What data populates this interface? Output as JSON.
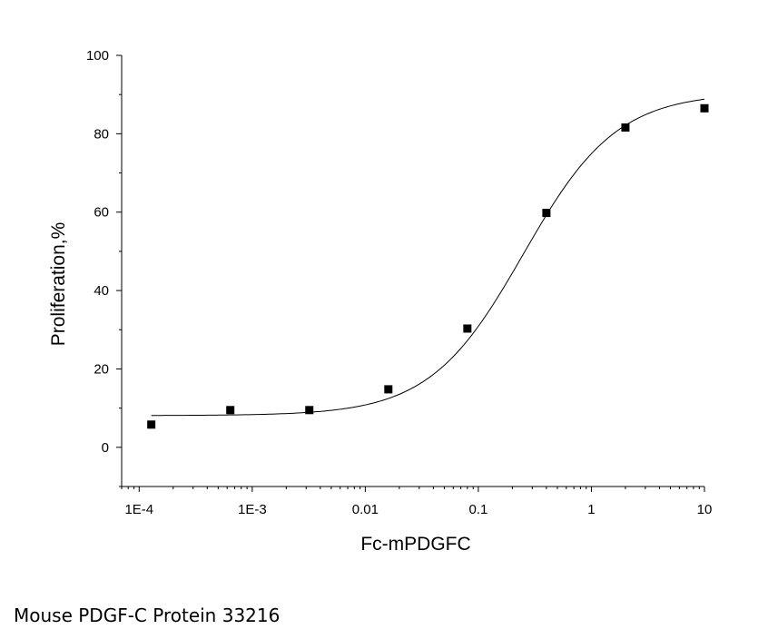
{
  "chart_data": {
    "type": "scatter",
    "x_scale": "log",
    "xlim": [
      7e-05,
      10
    ],
    "ylim": [
      -10,
      100
    ],
    "xlabel": "Fc-mPDGFC",
    "ylabel": "Proliferation,%",
    "x_ticks": [
      "1E-4",
      "1E-3",
      "0.01",
      "0.1",
      "1",
      "10"
    ],
    "y_ticks": [
      "0",
      "20",
      "40",
      "60",
      "80",
      "100"
    ],
    "grid": false,
    "points": [
      {
        "x": 0.000128,
        "y": 5.8
      },
      {
        "x": 0.00064,
        "y": 9.5
      },
      {
        "x": 0.0032,
        "y": 9.5
      },
      {
        "x": 0.016,
        "y": 14.8
      },
      {
        "x": 0.08,
        "y": 30.3
      },
      {
        "x": 0.4,
        "y": 59.8
      },
      {
        "x": 2,
        "y": 81.6
      },
      {
        "x": 10,
        "y": 86.5
      }
    ],
    "fit_curve": {
      "type": "4PL",
      "bottom": 8.1,
      "top": 90.5,
      "ec50": 0.25,
      "hill": 1.05
    }
  },
  "caption": "Mouse PDGF-C Protein 33216"
}
